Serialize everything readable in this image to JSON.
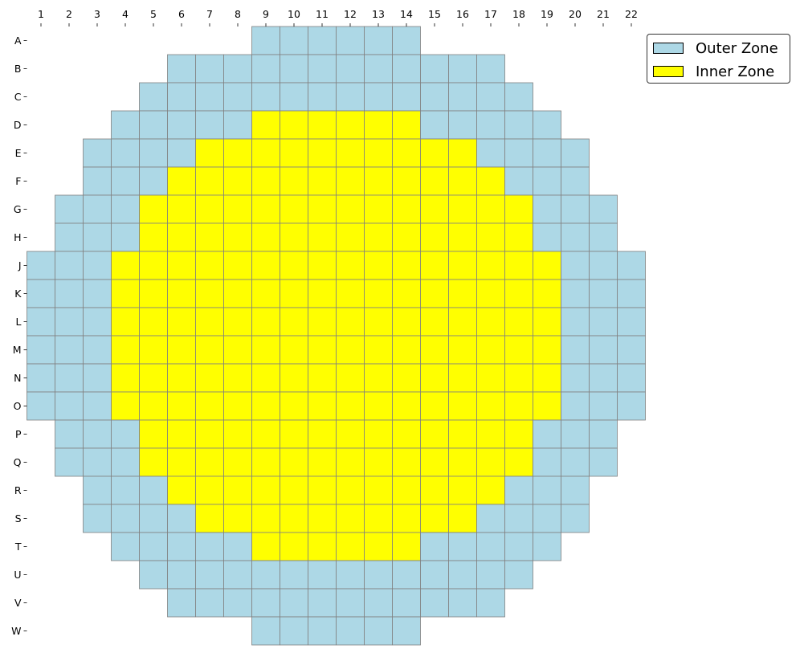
{
  "chart_data": {
    "type": "heatmap",
    "title": "",
    "xlabel": "",
    "ylabel": "",
    "columns": [
      "1",
      "2",
      "3",
      "4",
      "5",
      "6",
      "7",
      "8",
      "9",
      "10",
      "11",
      "12",
      "13",
      "14",
      "15",
      "16",
      "17",
      "18",
      "19",
      "20",
      "21",
      "22"
    ],
    "rows": [
      "A",
      "B",
      "C",
      "D",
      "E",
      "F",
      "G",
      "H",
      "J",
      "K",
      "L",
      "M",
      "N",
      "O",
      "P",
      "Q",
      "R",
      "S",
      "T",
      "U",
      "V",
      "W"
    ],
    "legend": {
      "placement": "top-right",
      "entries": [
        {
          "key": "outer",
          "label": "Outer Zone",
          "color": "#add8e6"
        },
        {
          "key": "inner",
          "label": "Inner Zone",
          "color": "#ffff00"
        }
      ]
    },
    "grid_line_color": "#808080",
    "zone_legend": {
      ".": "empty",
      "O": "Outer Zone",
      "I": "Inner Zone"
    },
    "map": [
      "........OOOOOO........",
      ".....OOOOOOOOOOOO.....",
      "....OOOOOOOOOOOOOO....",
      "...OOOOOIIIIIIOOOOO...",
      "..OOOOIIIIIIIIIIOOOO..",
      "..OOOIIIIIIIIIIIIOOO..",
      ".OOOIIIIIIIIIIIIIIOOO.",
      ".OOOIIIIIIIIIIIIIIOOO.",
      "OOOIIIIIIIIIIIIIIIIOOO",
      "OOOIIIIIIIIIIIIIIIIOOO",
      "OOOIIIIIIIIIIIIIIIIOOO",
      "OOOIIIIIIIIIIIIIIIIOOO",
      "OOOIIIIIIIIIIIIIIIIOOO",
      "OOOIIIIIIIIIIIIIIIIOOO",
      ".OOOIIIIIIIIIIIIIIOOO.",
      ".OOOIIIIIIIIIIIIIIOOO.",
      "..OOOIIIIIIIIIIIIOOO..",
      "..OOOOIIIIIIIIIIOOOO..",
      "...OOOOOIIIIIIOOOOO...",
      "....OOOOOOOOOOOOOO....",
      ".....OOOOOOOOOOOO.....",
      "........OOOOOO........"
    ]
  }
}
